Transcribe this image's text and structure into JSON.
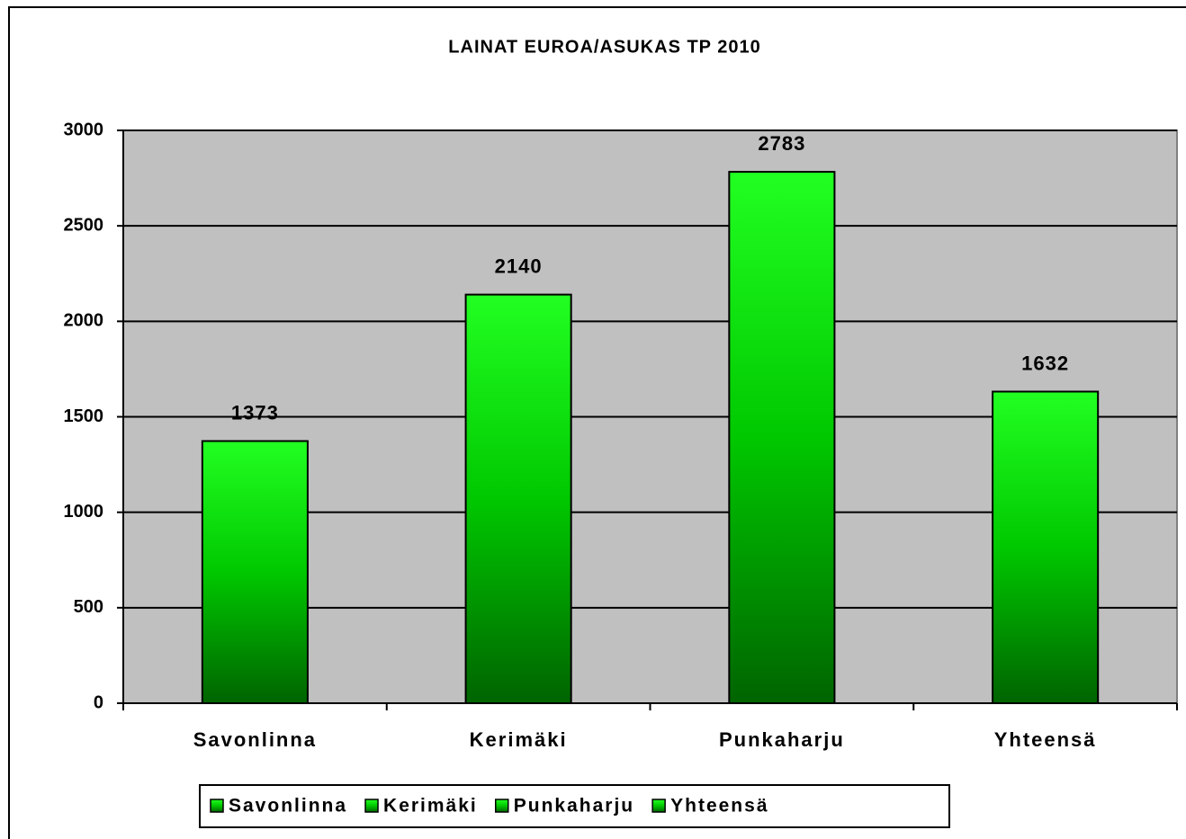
{
  "chart_data": {
    "type": "bar",
    "title": "LAINAT EUROA/ASUKAS TP 2010",
    "categories": [
      "Savonlinna",
      "Kerimäki",
      "Punkaharju",
      "Yhteensä"
    ],
    "values": [
      1373,
      2140,
      2783,
      1632
    ],
    "color": "#00ff00",
    "ylim": [
      0,
      3000
    ],
    "yticks": [
      0,
      500,
      1000,
      1500,
      2000,
      2500,
      3000
    ],
    "grid": true,
    "legend": "bottom"
  }
}
